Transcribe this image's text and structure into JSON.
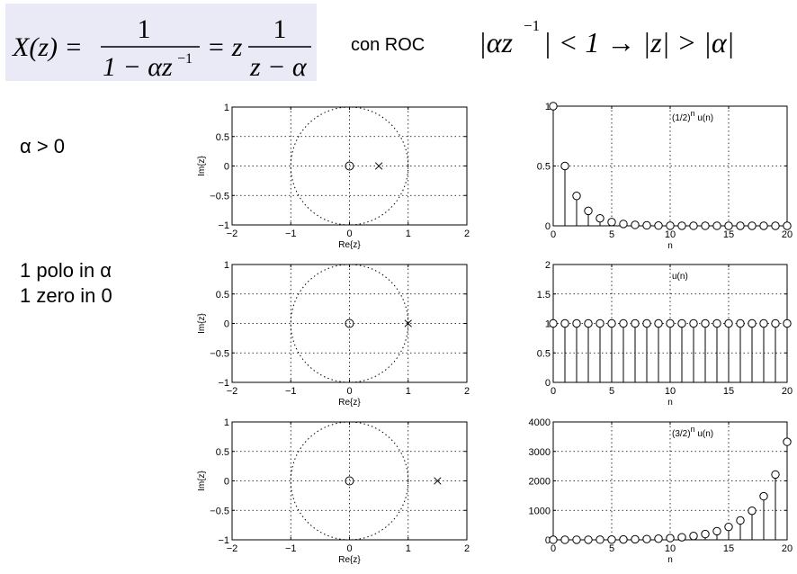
{
  "header": {
    "formula": {
      "lhs": "X(z) =",
      "frac1_num": "1",
      "frac1_den": "1 − αz",
      "frac1_den_sup": "−1",
      "eq2": "= z",
      "frac2_num": "1",
      "frac2_den": "z − α"
    },
    "roc_label": "con ROC",
    "roc_condition": {
      "left": "|αz",
      "left_sup": "−1",
      "rest": "| < 1 → |z| > |α|"
    }
  },
  "labels": {
    "alpha_condition": "α  > 0",
    "pole_text": "1 polo in α",
    "zero_text": "1 zero in 0"
  },
  "colors": {
    "axes": "#000000",
    "grid": "#000000",
    "background": "#ffffff",
    "formula_bg": "#e9eaf6"
  },
  "chart_data": [
    {
      "type": "scatter",
      "title": "",
      "xlabel": "Re{z}",
      "ylabel": "Im{z}",
      "xlim": [
        -2,
        2
      ],
      "ylim": [
        -1,
        1
      ],
      "xticks": [
        -2,
        -1,
        0,
        1,
        2
      ],
      "xtick_labels": [
        "−2",
        "−1",
        "0",
        "1",
        "2"
      ],
      "yticks": [
        1,
        0.5,
        0,
        -0.5,
        -1
      ],
      "ytick_labels": [
        "1",
        "0.5",
        "0",
        "−0.5",
        "−1"
      ],
      "unit_circle": true,
      "grid": true,
      "zeros": [
        {
          "x": 0,
          "y": 0
        }
      ],
      "poles": [
        {
          "x": 0.5,
          "y": 0
        }
      ]
    },
    {
      "type": "stem",
      "annotation": "(1/2)",
      "annotation_sup": "n",
      "annotation_rest": " u(n)",
      "xlabel": "n",
      "xlim": [
        0,
        20
      ],
      "ylim": [
        0,
        1
      ],
      "xticks": [
        0,
        5,
        10,
        15,
        20
      ],
      "xtick_labels": [
        "0",
        "5",
        "10",
        "15",
        "20"
      ],
      "yticks": [
        1,
        0.5,
        0
      ],
      "ytick_labels": [
        "1",
        "0.5",
        "0"
      ],
      "grid": true,
      "x": [
        0,
        1,
        2,
        3,
        4,
        5,
        6,
        7,
        8,
        9,
        10,
        11,
        12,
        13,
        14,
        15,
        16,
        17,
        18,
        19,
        20
      ],
      "values": [
        1,
        0.5,
        0.25,
        0.125,
        0.0625,
        0.0313,
        0.0156,
        0.0078,
        0.0039,
        0.002,
        0.001,
        0.0005,
        0.0002,
        0.0001,
        0.0001,
        0,
        0,
        0,
        0,
        0,
        0
      ]
    },
    {
      "type": "scatter",
      "title": "",
      "xlabel": "Re{z}",
      "ylabel": "Im{z}",
      "xlim": [
        -2,
        2
      ],
      "ylim": [
        -1,
        1
      ],
      "xticks": [
        -2,
        -1,
        0,
        1,
        2
      ],
      "xtick_labels": [
        "−2",
        "−1",
        "0",
        "1",
        "2"
      ],
      "yticks": [
        1,
        0.5,
        0,
        -0.5,
        -1
      ],
      "ytick_labels": [
        "1",
        "0.5",
        "0",
        "−0.5",
        "−1"
      ],
      "unit_circle": true,
      "grid": true,
      "zeros": [
        {
          "x": 0,
          "y": 0
        }
      ],
      "poles": [
        {
          "x": 1,
          "y": 0
        }
      ]
    },
    {
      "type": "stem",
      "annotation": "u(n)",
      "annotation_sup": "",
      "annotation_rest": "",
      "xlabel": "n",
      "xlim": [
        0,
        20
      ],
      "ylim": [
        0,
        2
      ],
      "xticks": [
        0,
        5,
        10,
        15,
        20
      ],
      "xtick_labels": [
        "0",
        "5",
        "10",
        "15",
        "20"
      ],
      "yticks": [
        2,
        1.5,
        1,
        0.5,
        0
      ],
      "ytick_labels": [
        "2",
        "1.5",
        "1",
        "0.5",
        "0"
      ],
      "grid": true,
      "x": [
        0,
        1,
        2,
        3,
        4,
        5,
        6,
        7,
        8,
        9,
        10,
        11,
        12,
        13,
        14,
        15,
        16,
        17,
        18,
        19,
        20
      ],
      "values": [
        1,
        1,
        1,
        1,
        1,
        1,
        1,
        1,
        1,
        1,
        1,
        1,
        1,
        1,
        1,
        1,
        1,
        1,
        1,
        1,
        1
      ]
    },
    {
      "type": "scatter",
      "title": "",
      "xlabel": "Re{z}",
      "ylabel": "Im{z}",
      "xlim": [
        -2,
        2
      ],
      "ylim": [
        -1,
        1
      ],
      "xticks": [
        -2,
        -1,
        0,
        1,
        2
      ],
      "xtick_labels": [
        "−2",
        "−1",
        "0",
        "1",
        "2"
      ],
      "yticks": [
        1,
        0.5,
        0,
        -0.5,
        -1
      ],
      "ytick_labels": [
        "1",
        "0.5",
        "0",
        "−0.5",
        "−1"
      ],
      "unit_circle": true,
      "grid": true,
      "zeros": [
        {
          "x": 0,
          "y": 0
        }
      ],
      "poles": [
        {
          "x": 1.5,
          "y": 0
        }
      ]
    },
    {
      "type": "stem",
      "annotation": "(3/2)",
      "annotation_sup": "n",
      "annotation_rest": " u(n)",
      "xlabel": "n",
      "xlim": [
        0,
        20
      ],
      "ylim": [
        0,
        4000
      ],
      "xticks": [
        0,
        5,
        10,
        15,
        20
      ],
      "xtick_labels": [
        "0",
        "5",
        "10",
        "15",
        "20"
      ],
      "yticks": [
        4000,
        3000,
        2000,
        1000,
        0
      ],
      "ytick_labels": [
        "4000",
        "3000",
        "2000",
        "1000",
        "0"
      ],
      "grid": true,
      "x": [
        0,
        1,
        2,
        3,
        4,
        5,
        6,
        7,
        8,
        9,
        10,
        11,
        12,
        13,
        14,
        15,
        16,
        17,
        18,
        19,
        20
      ],
      "values": [
        1,
        1.5,
        2.25,
        3.38,
        5.06,
        7.59,
        11.4,
        17.1,
        25.6,
        38.4,
        57.7,
        86.5,
        130,
        195,
        292,
        438,
        657,
        985,
        1478,
        2217,
        3325
      ]
    }
  ]
}
